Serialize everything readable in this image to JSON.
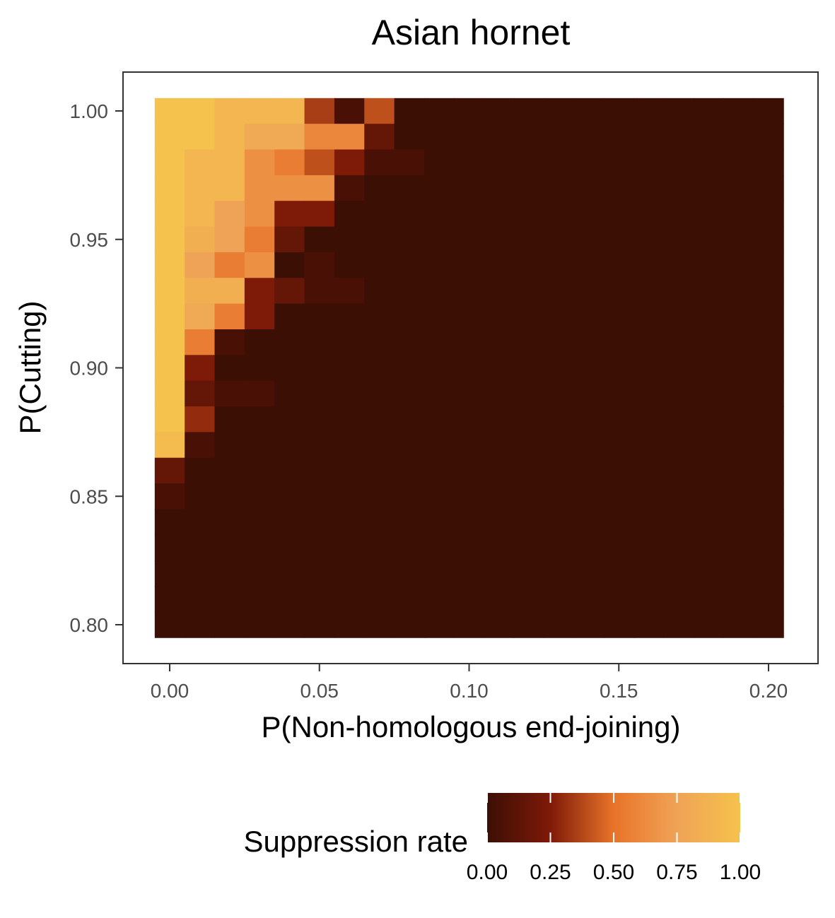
{
  "chart_data": {
    "type": "heatmap",
    "title": "Asian hornet",
    "xlabel": "P(Non-homologous end-joining)",
    "ylabel": "P(Cutting)",
    "x_ticks": [
      "0.00",
      "0.05",
      "0.10",
      "0.15",
      "0.20"
    ],
    "x_tick_values": [
      0.0,
      0.05,
      0.1,
      0.15,
      0.2
    ],
    "y_ticks": [
      "0.80",
      "0.85",
      "0.90",
      "0.95",
      "1.00"
    ],
    "y_tick_values": [
      0.8,
      0.85,
      0.9,
      0.95,
      1.0
    ],
    "x_values": [
      0.0,
      0.01,
      0.02,
      0.03,
      0.04,
      0.05,
      0.06,
      0.07,
      0.08,
      0.09,
      0.1,
      0.11,
      0.12,
      0.13,
      0.14,
      0.15,
      0.16,
      0.17,
      0.18,
      0.19,
      0.2
    ],
    "y_values": [
      1.0,
      0.99,
      0.98,
      0.97,
      0.96,
      0.95,
      0.94,
      0.93,
      0.92,
      0.91,
      0.9,
      0.89,
      0.88,
      0.87,
      0.86,
      0.85,
      0.84,
      0.83,
      0.82,
      0.81,
      0.8
    ],
    "xlim": [
      -0.005,
      0.205
    ],
    "ylim": [
      0.795,
      1.005
    ],
    "suppression_rate": [
      [
        1.0,
        1.0,
        0.9,
        0.9,
        0.9,
        0.35,
        0.05,
        0.4,
        0,
        0,
        0,
        0,
        0,
        0,
        0,
        0,
        0,
        0,
        0,
        0,
        0
      ],
      [
        1.0,
        1.0,
        0.9,
        0.8,
        0.8,
        0.6,
        0.6,
        0.15,
        0,
        0,
        0,
        0,
        0,
        0,
        0,
        0,
        0,
        0,
        0,
        0,
        0
      ],
      [
        1.0,
        0.9,
        0.9,
        0.65,
        0.55,
        0.4,
        0.25,
        0.05,
        0.05,
        0,
        0,
        0,
        0,
        0,
        0,
        0,
        0,
        0,
        0,
        0,
        0
      ],
      [
        1.0,
        0.9,
        0.9,
        0.65,
        0.65,
        0.65,
        0.05,
        0,
        0,
        0,
        0,
        0,
        0,
        0,
        0,
        0,
        0,
        0,
        0,
        0,
        0
      ],
      [
        1.0,
        0.9,
        0.75,
        0.65,
        0.25,
        0.25,
        0,
        0,
        0,
        0,
        0,
        0,
        0,
        0,
        0,
        0,
        0,
        0,
        0,
        0,
        0
      ],
      [
        1.0,
        0.85,
        0.75,
        0.55,
        0.15,
        0,
        0,
        0,
        0,
        0,
        0,
        0,
        0,
        0,
        0,
        0,
        0,
        0,
        0,
        0,
        0
      ],
      [
        1.0,
        0.75,
        0.55,
        0.65,
        0,
        0.05,
        0,
        0,
        0,
        0,
        0,
        0,
        0,
        0,
        0,
        0,
        0,
        0,
        0,
        0,
        0
      ],
      [
        1.0,
        0.85,
        0.85,
        0.25,
        0.15,
        0.05,
        0.05,
        0,
        0,
        0,
        0,
        0,
        0,
        0,
        0,
        0,
        0,
        0,
        0,
        0,
        0
      ],
      [
        1.0,
        0.8,
        0.55,
        0.25,
        0,
        0,
        0,
        0,
        0,
        0,
        0,
        0,
        0,
        0,
        0,
        0,
        0,
        0,
        0,
        0,
        0
      ],
      [
        1.0,
        0.55,
        0.05,
        0,
        0,
        0,
        0,
        0,
        0,
        0,
        0,
        0,
        0,
        0,
        0,
        0,
        0,
        0,
        0,
        0,
        0
      ],
      [
        1.0,
        0.25,
        0,
        0,
        0,
        0,
        0,
        0,
        0,
        0,
        0,
        0,
        0,
        0,
        0,
        0,
        0,
        0,
        0,
        0,
        0
      ],
      [
        1.0,
        0.15,
        0.05,
        0.05,
        0,
        0,
        0,
        0,
        0,
        0,
        0,
        0,
        0,
        0,
        0,
        0,
        0,
        0,
        0,
        0,
        0
      ],
      [
        1.0,
        0.3,
        0,
        0,
        0,
        0,
        0,
        0,
        0,
        0,
        0,
        0,
        0,
        0,
        0,
        0,
        0,
        0,
        0,
        0,
        0
      ],
      [
        0.95,
        0.05,
        0,
        0,
        0,
        0,
        0,
        0,
        0,
        0,
        0,
        0,
        0,
        0,
        0,
        0,
        0,
        0,
        0,
        0,
        0
      ],
      [
        0.15,
        0,
        0,
        0,
        0,
        0,
        0,
        0,
        0,
        0,
        0,
        0,
        0,
        0,
        0,
        0,
        0,
        0,
        0,
        0,
        0
      ],
      [
        0.05,
        0,
        0,
        0,
        0,
        0,
        0,
        0,
        0,
        0,
        0,
        0,
        0,
        0,
        0,
        0,
        0,
        0,
        0,
        0,
        0
      ],
      [
        0,
        0,
        0,
        0,
        0,
        0,
        0,
        0,
        0,
        0,
        0,
        0,
        0,
        0,
        0,
        0,
        0,
        0,
        0,
        0,
        0
      ],
      [
        0,
        0,
        0,
        0,
        0,
        0,
        0,
        0,
        0,
        0,
        0,
        0,
        0,
        0,
        0,
        0,
        0,
        0,
        0,
        0,
        0
      ],
      [
        0,
        0,
        0,
        0,
        0,
        0,
        0,
        0,
        0,
        0,
        0,
        0,
        0,
        0,
        0,
        0,
        0,
        0,
        0,
        0,
        0
      ],
      [
        0,
        0,
        0,
        0,
        0,
        0,
        0,
        0,
        0,
        0,
        0,
        0,
        0,
        0,
        0,
        0,
        0,
        0,
        0,
        0,
        0
      ],
      [
        0,
        0,
        0,
        0,
        0,
        0,
        0,
        0,
        0,
        0,
        0,
        0,
        0,
        0,
        0,
        0,
        0,
        0,
        0,
        0,
        0
      ]
    ],
    "legend": {
      "title": "Suppression rate",
      "placement": "bottom",
      "ticks": [
        "0.00",
        "0.25",
        "0.50",
        "0.75",
        "1.00"
      ],
      "tick_values": [
        0,
        0.25,
        0.5,
        0.75,
        1.0
      ],
      "color_stops": [
        {
          "value": 0.0,
          "color": "#3c0f05"
        },
        {
          "value": 0.25,
          "color": "#7e1a08"
        },
        {
          "value": 0.5,
          "color": "#e8742a"
        },
        {
          "value": 0.75,
          "color": "#efa356"
        },
        {
          "value": 1.0,
          "color": "#f5c24d"
        }
      ]
    },
    "grid": false,
    "panel_border_color": "#333333"
  }
}
